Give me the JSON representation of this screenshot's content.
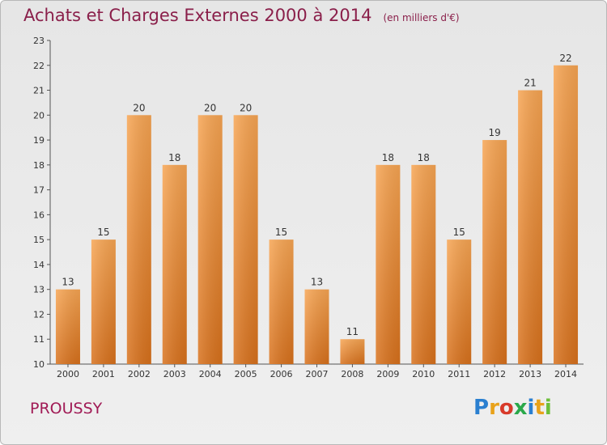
{
  "chart_data": {
    "type": "bar",
    "title": "Achats et Charges Externes 2000 à 2014",
    "unit_label": "(en milliers d'€)",
    "categories": [
      "2000",
      "2001",
      "2002",
      "2003",
      "2004",
      "2005",
      "2006",
      "2007",
      "2008",
      "2009",
      "2010",
      "2011",
      "2012",
      "2013",
      "2014"
    ],
    "values": [
      13,
      15,
      20,
      18,
      20,
      20,
      15,
      13,
      11,
      18,
      18,
      15,
      19,
      21,
      22
    ],
    "ylim": [
      10,
      23
    ],
    "yticks": [
      10,
      11,
      12,
      13,
      14,
      15,
      16,
      17,
      18,
      19,
      20,
      21,
      22,
      23
    ],
    "grid": false,
    "bar_color": "#f0882a"
  },
  "footer": {
    "commune": "PROUSSY"
  },
  "logo": {
    "letters": [
      "P",
      "r",
      "o",
      "x",
      "i",
      "t",
      "i"
    ],
    "colors": [
      "#2a7fd0",
      "#e8a21a",
      "#d83a2a",
      "#2aa84a",
      "#2a7fd0",
      "#e8a21a",
      "#6cbf3a"
    ]
  }
}
